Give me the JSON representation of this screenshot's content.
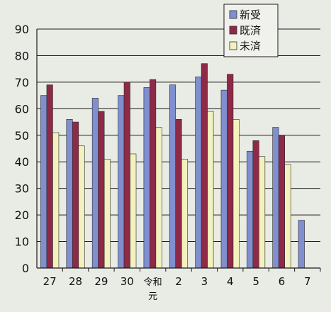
{
  "chart_data": {
    "type": "bar",
    "categories": [
      "27",
      "28",
      "29",
      "30",
      "令和元",
      "2",
      "3",
      "4",
      "5",
      "6",
      "7"
    ],
    "category_lines": [
      [
        "27"
      ],
      [
        "28"
      ],
      [
        "29"
      ],
      [
        "30"
      ],
      [
        "令和",
        "元"
      ],
      [
        "2"
      ],
      [
        "3"
      ],
      [
        "4"
      ],
      [
        "5"
      ],
      [
        "6"
      ],
      [
        "7"
      ]
    ],
    "series": [
      {
        "name": "新受",
        "color": "#7f8fcf",
        "values": [
          65,
          56,
          64,
          65,
          68,
          69,
          72,
          67,
          44,
          53,
          18
        ]
      },
      {
        "name": "既済",
        "color": "#8e2a47",
        "values": [
          69,
          55,
          59,
          70,
          71,
          56,
          77,
          73,
          48,
          50,
          null
        ]
      },
      {
        "name": "未済",
        "color": "#f3f1bd",
        "values": [
          51,
          46,
          41,
          43,
          53,
          41,
          59,
          56,
          42,
          39,
          null
        ]
      }
    ],
    "ylim": [
      0,
      90
    ],
    "yticks": [
      "0",
      "10",
      "20",
      "30",
      "40",
      "50",
      "60",
      "70",
      "80",
      "90"
    ],
    "grid": true,
    "legend_position": "top-right",
    "colors": {
      "background": "#e9ebe5",
      "gridline": "#1c1c1c",
      "axis": "#1c1c1c",
      "text": "#111111"
    }
  }
}
